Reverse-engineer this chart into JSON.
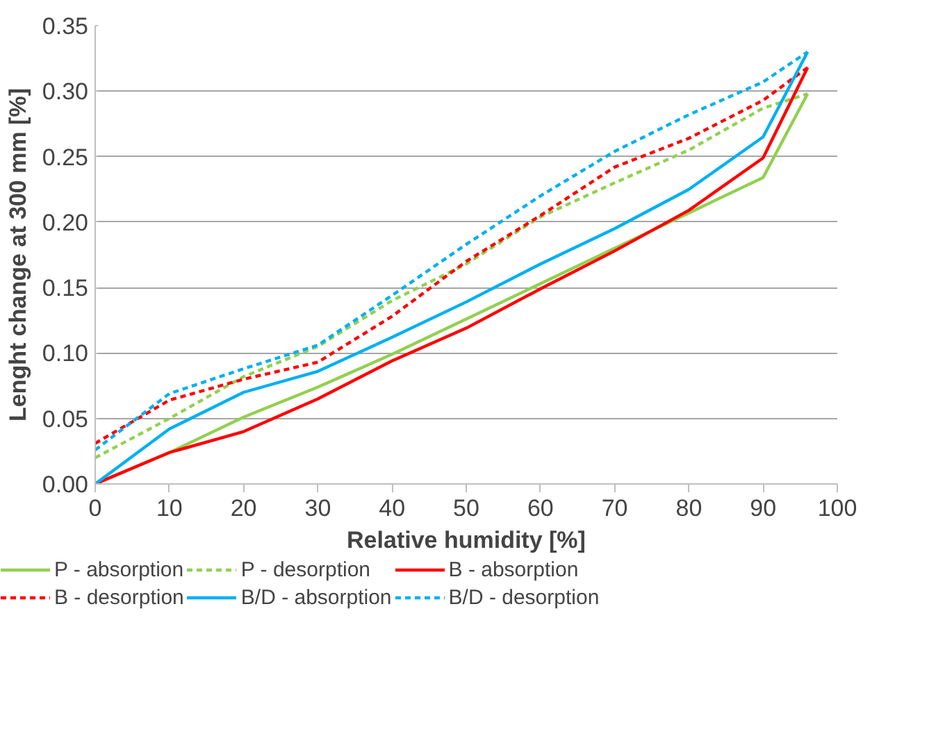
{
  "chart_data": {
    "type": "line",
    "xlabel": "Relative humidity [%]",
    "ylabel": "Lenght change at 300 mm [%]",
    "x": [
      0,
      10,
      20,
      30,
      40,
      50,
      60,
      70,
      80,
      90,
      96
    ],
    "xlim": [
      0,
      100
    ],
    "xticks": [
      0,
      10,
      20,
      30,
      40,
      50,
      60,
      70,
      80,
      90,
      100
    ],
    "ylim": [
      0,
      0.35
    ],
    "yticks": [
      {
        "value": 0,
        "label": "0.00"
      },
      {
        "value": 0.05,
        "label": "0.05"
      },
      {
        "value": 0.1,
        "label": "0.10"
      },
      {
        "value": 0.15,
        "label": "0.15"
      },
      {
        "value": 0.2,
        "label": "0.20"
      },
      {
        "value": 0.25,
        "label": "0.25"
      },
      {
        "value": 0.3,
        "label": "0.30"
      },
      {
        "value": 0.35,
        "label": "0.35"
      }
    ],
    "grid": "y",
    "legend": "bottom",
    "marker": "none",
    "series": [
      {
        "name": "P - absorption",
        "color": "#92d050",
        "line_style": "solid",
        "values": [
          0,
          0.024,
          0.051,
          0.074,
          0.099,
          0.126,
          0.153,
          0.18,
          0.207,
          0.234,
          0.298
        ]
      },
      {
        "name": "P - desorption",
        "color": "#92d050",
        "line_style": "dashed",
        "values": [
          0.02,
          0.05,
          0.082,
          0.105,
          0.14,
          0.168,
          0.204,
          0.23,
          0.255,
          0.287,
          0.298
        ]
      },
      {
        "name": "B - absorption",
        "color": "#ff0000",
        "line_style": "solid",
        "values": [
          0,
          0.024,
          0.04,
          0.065,
          0.094,
          0.119,
          0.149,
          0.178,
          0.209,
          0.249,
          0.318
        ]
      },
      {
        "name": "B - desorption",
        "color": "#ff0000",
        "line_style": "dashed",
        "values": [
          0.031,
          0.064,
          0.08,
          0.093,
          0.128,
          0.17,
          0.205,
          0.242,
          0.264,
          0.293,
          0.318
        ]
      },
      {
        "name": "B/D - absorption",
        "color": "#00b0f0",
        "line_style": "solid",
        "values": [
          0,
          0.042,
          0.07,
          0.086,
          0.112,
          0.139,
          0.168,
          0.195,
          0.225,
          0.265,
          0.33
        ]
      },
      {
        "name": "B/D - desorption",
        "color": "#00b0f0",
        "line_style": "dashed",
        "values": [
          0.026,
          0.069,
          0.088,
          0.106,
          0.144,
          0.183,
          0.22,
          0.254,
          0.282,
          0.307,
          0.33
        ]
      }
    ]
  }
}
